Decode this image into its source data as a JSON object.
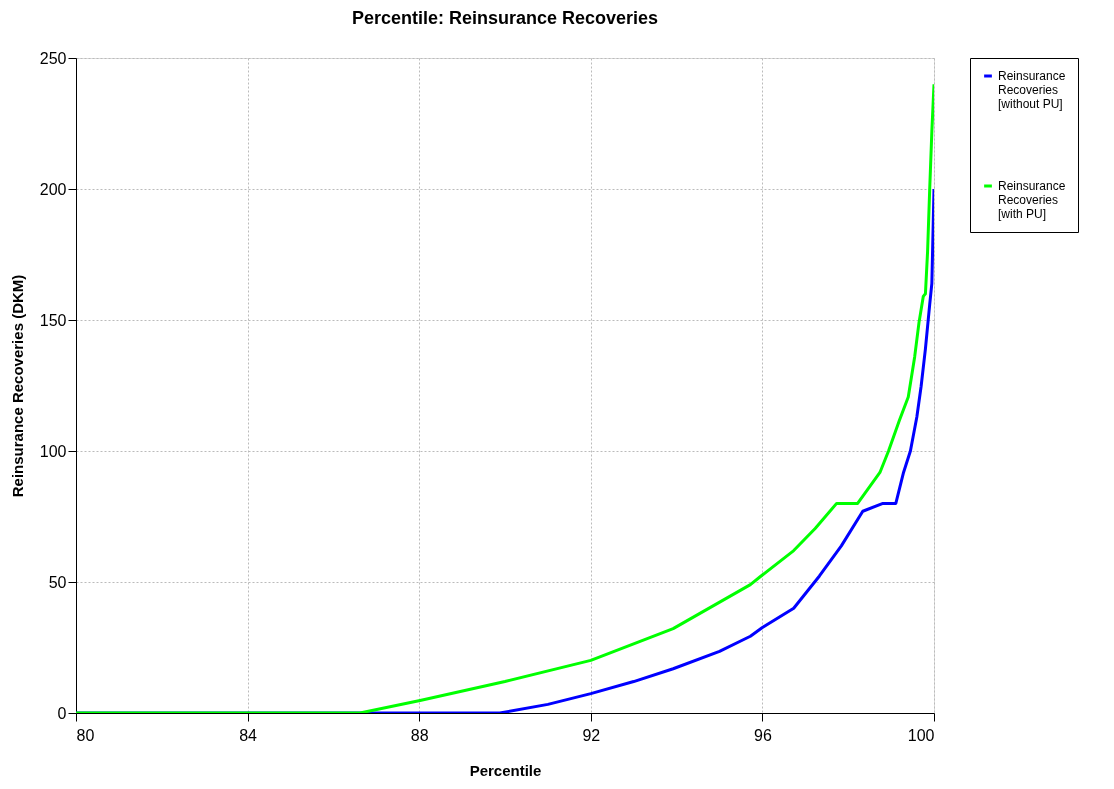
{
  "chart_data": {
    "type": "line",
    "title": "Percentile: Reinsurance Recoveries",
    "xlabel": "Percentile",
    "ylabel": "Reinsurance Recoveries (DKM)",
    "xlim": [
      80,
      100
    ],
    "xticks": [
      80,
      84,
      88,
      92,
      96,
      100
    ],
    "ylim": [
      0,
      250
    ],
    "yticks": [
      0,
      50,
      100,
      150,
      200,
      250
    ],
    "grid": true,
    "legend": "right",
    "marker": "none",
    "line_style": "solid",
    "series": [
      {
        "name": "Reinsurance Recoveries [without PU]",
        "color": "#0000ff",
        "x": [
          80,
          89.88,
          91,
          92,
          93,
          93.92,
          95,
          95.72,
          96,
          96.73,
          97.33,
          97.84,
          98.34,
          98.81,
          99.11,
          99.29,
          99.45,
          99.6,
          99.7,
          99.8,
          99.9,
          99.95,
          100
        ],
        "values": [
          0,
          0,
          3.3,
          7.4,
          12,
          16.9,
          23.5,
          29.3,
          32.6,
          40,
          52.3,
          63.8,
          77,
          80,
          80,
          91.8,
          100,
          113,
          124.7,
          139,
          156,
          164,
          200
        ]
      },
      {
        "name": "Reinsurance Recoveries [with PU]",
        "color": "#00ff00",
        "x": [
          80,
          86.62,
          88.02,
          90,
          92,
          93.92,
          95.72,
          95.94,
          96.73,
          97.23,
          97.73,
          98.22,
          98.74,
          98.94,
          99.19,
          99.4,
          99.55,
          99.65,
          99.75,
          99.8,
          99.85,
          99.9,
          99.95,
          100
        ],
        "values": [
          0,
          0,
          4.8,
          12,
          20.1,
          32.2,
          49,
          51.9,
          62,
          70.4,
          80,
          80,
          91.8,
          100,
          111.5,
          120.6,
          136,
          149,
          159,
          160,
          176,
          200,
          222,
          240
        ]
      }
    ]
  }
}
